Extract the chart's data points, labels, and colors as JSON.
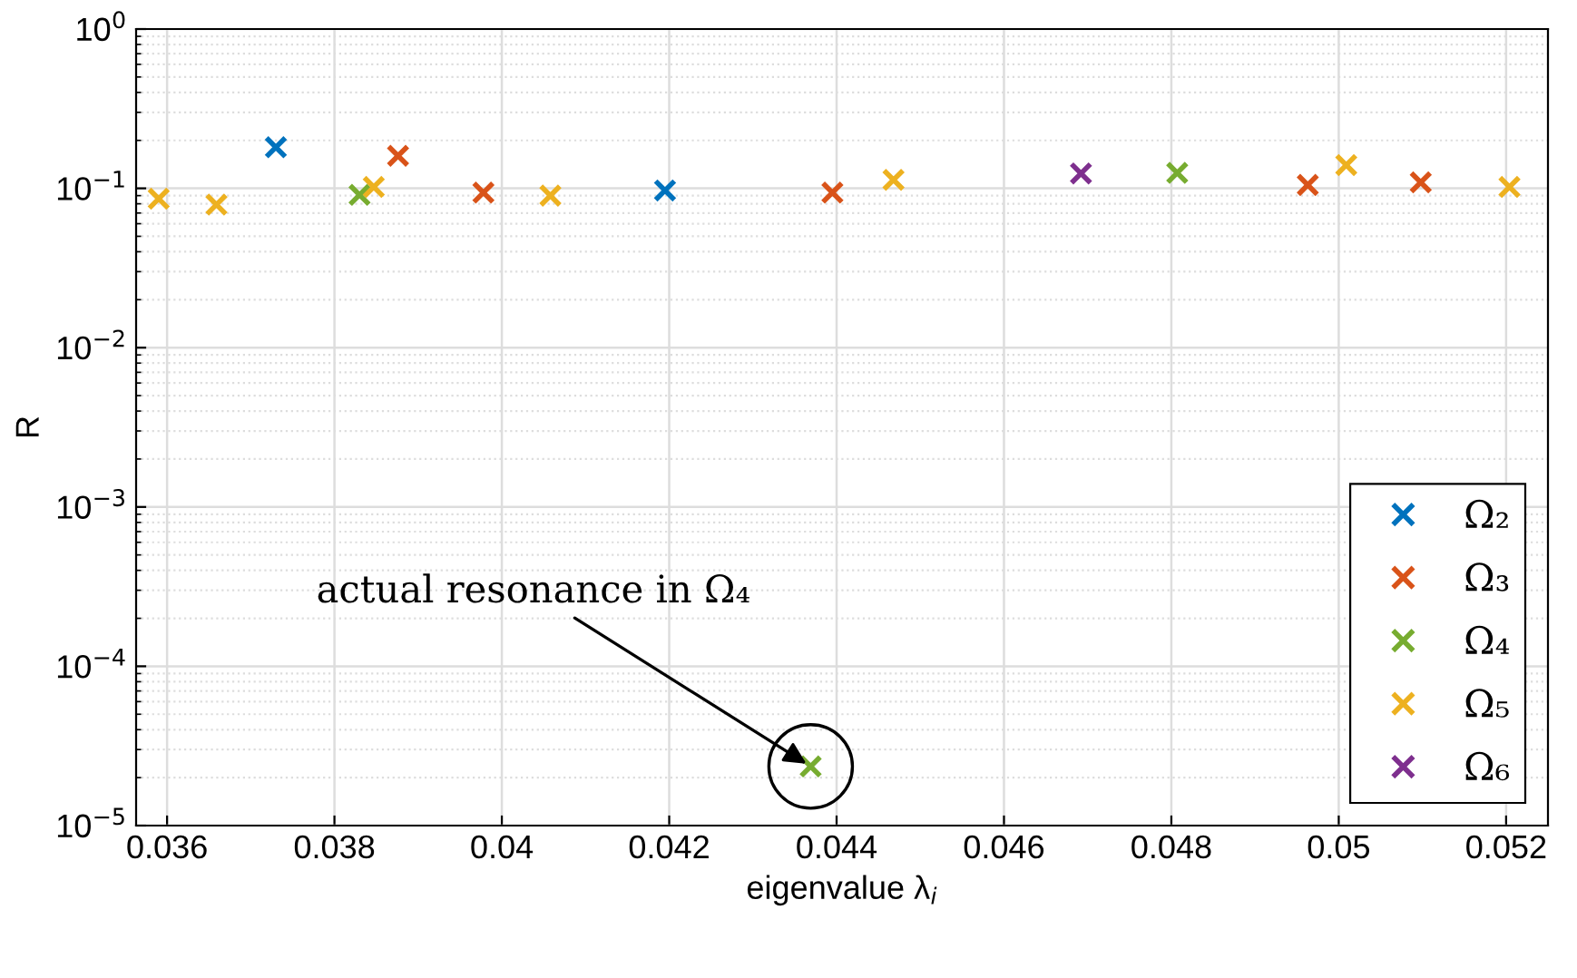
{
  "chart_data": {
    "type": "scatter",
    "xlabel": "eigenvalue λ$_{i}$",
    "ylabel": "R",
    "log": "y",
    "grid": true,
    "legend": "bottom right",
    "marker": "cross",
    "xlim": [
      0.03563,
      0.0525
    ],
    "ylim": [
      1e-05,
      1
    ],
    "xticks": [
      0.036,
      0.038,
      0.04,
      0.042,
      0.044,
      0.046,
      0.048,
      0.05,
      0.052
    ],
    "yticks": [
      {
        "value": 1e-05,
        "label": "10$^{−5}$"
      },
      {
        "value": 0.0001,
        "label": "10$^{−4}$"
      },
      {
        "value": 0.001,
        "label": "10$^{−3}$"
      },
      {
        "value": 0.01,
        "label": "10$^{−2}$"
      },
      {
        "value": 0.1,
        "label": "10$^{−1}$"
      },
      {
        "value": 1,
        "label": "10$^{0}$"
      }
    ],
    "series": [
      {
        "name": "Ω₂",
        "color": "#0072bd",
        "x": [
          0.0373,
          0.04195
        ],
        "values": [
          0.181,
          0.097
        ]
      },
      {
        "name": "Ω₃",
        "color": "#d95319",
        "x": [
          0.03876,
          0.03978,
          0.04395,
          0.04963,
          0.05098
        ],
        "values": [
          0.16,
          0.094,
          0.094,
          0.105,
          0.109
        ]
      },
      {
        "name": "Ω₄",
        "color": "#77ac30",
        "x": [
          0.0383,
          0.04369,
          0.04807
        ],
        "values": [
          0.091,
          2.35e-05,
          0.125
        ]
      },
      {
        "name": "Ω₅",
        "color": "#edb120",
        "x": [
          0.0359,
          0.03659,
          0.03847,
          0.04058,
          0.04468,
          0.05009,
          0.05204
        ],
        "values": [
          0.086,
          0.079,
          0.102,
          0.09,
          0.113,
          0.14,
          0.102
        ]
      },
      {
        "name": "Ω₆",
        "color": "#7e2f8e",
        "x": [
          0.04692
        ],
        "values": [
          0.124
        ]
      }
    ],
    "annotations": [
      {
        "text": "actual resonance in Ω₄",
        "x": 0.04369,
        "y": 2.35e-05
      }
    ]
  }
}
